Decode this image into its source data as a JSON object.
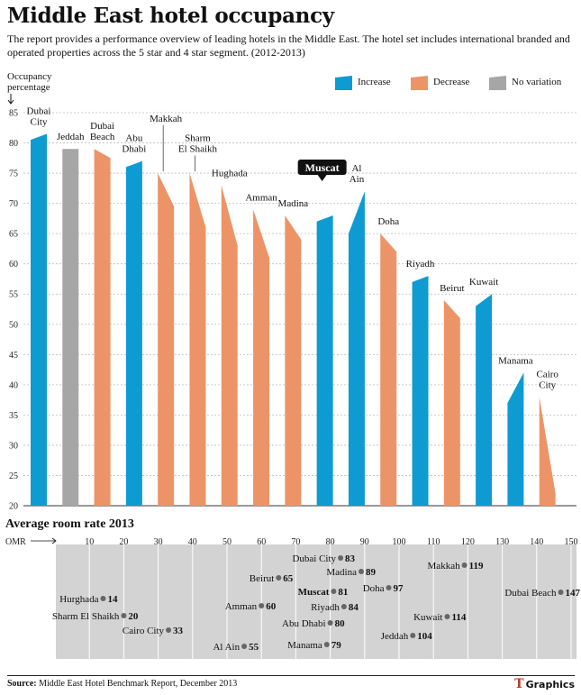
{
  "header": {
    "title": "Middle East hotel occupancy",
    "subtitle": "The report provides a performance overview of leading hotels in the Middle East. The hotel set includes international branded and operated properties across the 5 star and 4 star segment. (2012-2013)"
  },
  "colors": {
    "increase": "#0e9bd2",
    "decrease": "#ec9468",
    "no_variation": "#a6a6a6",
    "rate_panel": "#d3d3d3",
    "callout": "#111111"
  },
  "chart_data": [
    {
      "type": "bar",
      "ylabel": "Occupancy percentage",
      "ylim": [
        20,
        85
      ],
      "yticks": [
        20,
        25,
        30,
        35,
        40,
        45,
        50,
        55,
        60,
        65,
        70,
        75,
        80,
        85
      ],
      "grid": true,
      "highlight": "Muscat",
      "legend": {
        "position": "top-right",
        "entries": [
          {
            "key": "increase",
            "label": "Increase"
          },
          {
            "key": "decrease",
            "label": "Decrease"
          },
          {
            "key": "no_variation",
            "label": "No variation"
          }
        ]
      },
      "series": [
        {
          "category": "Dubai City",
          "start": 80.5,
          "end": 81.5,
          "change": "increase"
        },
        {
          "category": "Jeddah",
          "start": 79,
          "end": 79,
          "change": "no_variation"
        },
        {
          "category": "Dubai Beach",
          "start": 79,
          "end": 77.5,
          "change": "decrease"
        },
        {
          "category": "Abu Dhabi",
          "start": 76,
          "end": 77,
          "change": "increase"
        },
        {
          "category": "Makkah",
          "start": 75,
          "end": 69.5,
          "change": "decrease"
        },
        {
          "category": "Sharm El Shaikh",
          "start": 75,
          "end": 66,
          "change": "decrease"
        },
        {
          "category": "Hughada",
          "start": 73,
          "end": 63,
          "change": "decrease"
        },
        {
          "category": "Amman",
          "start": 69,
          "end": 61,
          "change": "decrease"
        },
        {
          "category": "Madina",
          "start": 68,
          "end": 64,
          "change": "decrease"
        },
        {
          "category": "Muscat",
          "start": 67,
          "end": 68,
          "change": "increase"
        },
        {
          "category": "Al Ain",
          "start": 65,
          "end": 72,
          "change": "increase"
        },
        {
          "category": "Doha",
          "start": 65,
          "end": 62,
          "change": "decrease"
        },
        {
          "category": "Riyadh",
          "start": 57,
          "end": 58,
          "change": "increase"
        },
        {
          "category": "Beirut",
          "start": 54,
          "end": 51,
          "change": "decrease"
        },
        {
          "category": "Kuwait",
          "start": 53,
          "end": 55,
          "change": "increase"
        },
        {
          "category": "Manama",
          "start": 37,
          "end": 42,
          "change": "increase"
        },
        {
          "category": "Cairo City",
          "start": 38,
          "end": 22,
          "change": "decrease"
        }
      ]
    },
    {
      "type": "scatter",
      "title": "Average room rate 2013",
      "xlabel": "OMR",
      "xlim": [
        0,
        150
      ],
      "xticks": [
        10,
        20,
        30,
        40,
        50,
        60,
        70,
        80,
        90,
        100,
        110,
        120,
        130,
        140,
        150
      ],
      "highlight": "Muscat",
      "points": [
        {
          "label": "Hurghada",
          "x": 14
        },
        {
          "label": "Sharm El Shaikh",
          "x": 20
        },
        {
          "label": "Cairo City",
          "x": 33
        },
        {
          "label": "Al Ain",
          "x": 55
        },
        {
          "label": "Amman",
          "x": 60
        },
        {
          "label": "Beirut",
          "x": 65
        },
        {
          "label": "Manama",
          "x": 79
        },
        {
          "label": "Abu Dhabi",
          "x": 80
        },
        {
          "label": "Muscat",
          "x": 81
        },
        {
          "label": "Dubai City",
          "x": 83
        },
        {
          "label": "Riyadh",
          "x": 84
        },
        {
          "label": "Madina",
          "x": 89
        },
        {
          "label": "Doha",
          "x": 97
        },
        {
          "label": "Jeddah",
          "x": 104
        },
        {
          "label": "Kuwait",
          "x": 114
        },
        {
          "label": "Makkah",
          "x": 119
        },
        {
          "label": "Dubai Beach",
          "x": 147
        }
      ]
    }
  ],
  "footer": {
    "source_key": "Source:",
    "source_text": "Middle East Hotel Benchmark Report, December 2013",
    "brand": "Graphics",
    "brand_mark": "T"
  }
}
